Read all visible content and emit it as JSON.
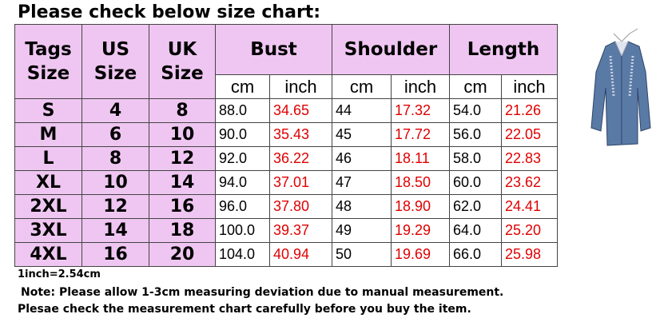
{
  "title": "Please check below size chart:",
  "table": {
    "headers": [
      "Tags Size",
      "US Size",
      "UK Size",
      "Bust",
      "Shoulder",
      "Length"
    ],
    "subheaders": [
      "cm",
      "inch",
      "cm",
      "inch",
      "cm",
      "inch"
    ],
    "rows": [
      [
        "S",
        "4",
        "8",
        "88.0",
        "34.65",
        "44",
        "17.32",
        "54.0",
        "21.26"
      ],
      [
        "M",
        "6",
        "10",
        "90.0",
        "35.43",
        "45",
        "17.72",
        "56.0",
        "22.05"
      ],
      [
        "L",
        "8",
        "12",
        "92.0",
        "36.22",
        "46",
        "18.11",
        "58.0",
        "22.83"
      ],
      [
        "XL",
        "10",
        "14",
        "94.0",
        "37.01",
        "47",
        "18.50",
        "60.0",
        "23.62"
      ],
      [
        "2XL",
        "12",
        "16",
        "96.0",
        "37.80",
        "48",
        "18.90",
        "62.0",
        "24.41"
      ],
      [
        "3XL",
        "14",
        "18",
        "100.0",
        "39.37",
        "49",
        "19.29",
        "64.0",
        "25.20"
      ],
      [
        "4XL",
        "16",
        "20",
        "104.0",
        "40.94",
        "50",
        "19.69",
        "66.0",
        "25.98"
      ]
    ]
  },
  "notes": [
    "1inch=2.54cm",
    "Note: Please allow 1-3cm measuring deviation due to manual measurement.",
    "Plesae check the measurement chart carefully before you buy the item."
  ]
}
